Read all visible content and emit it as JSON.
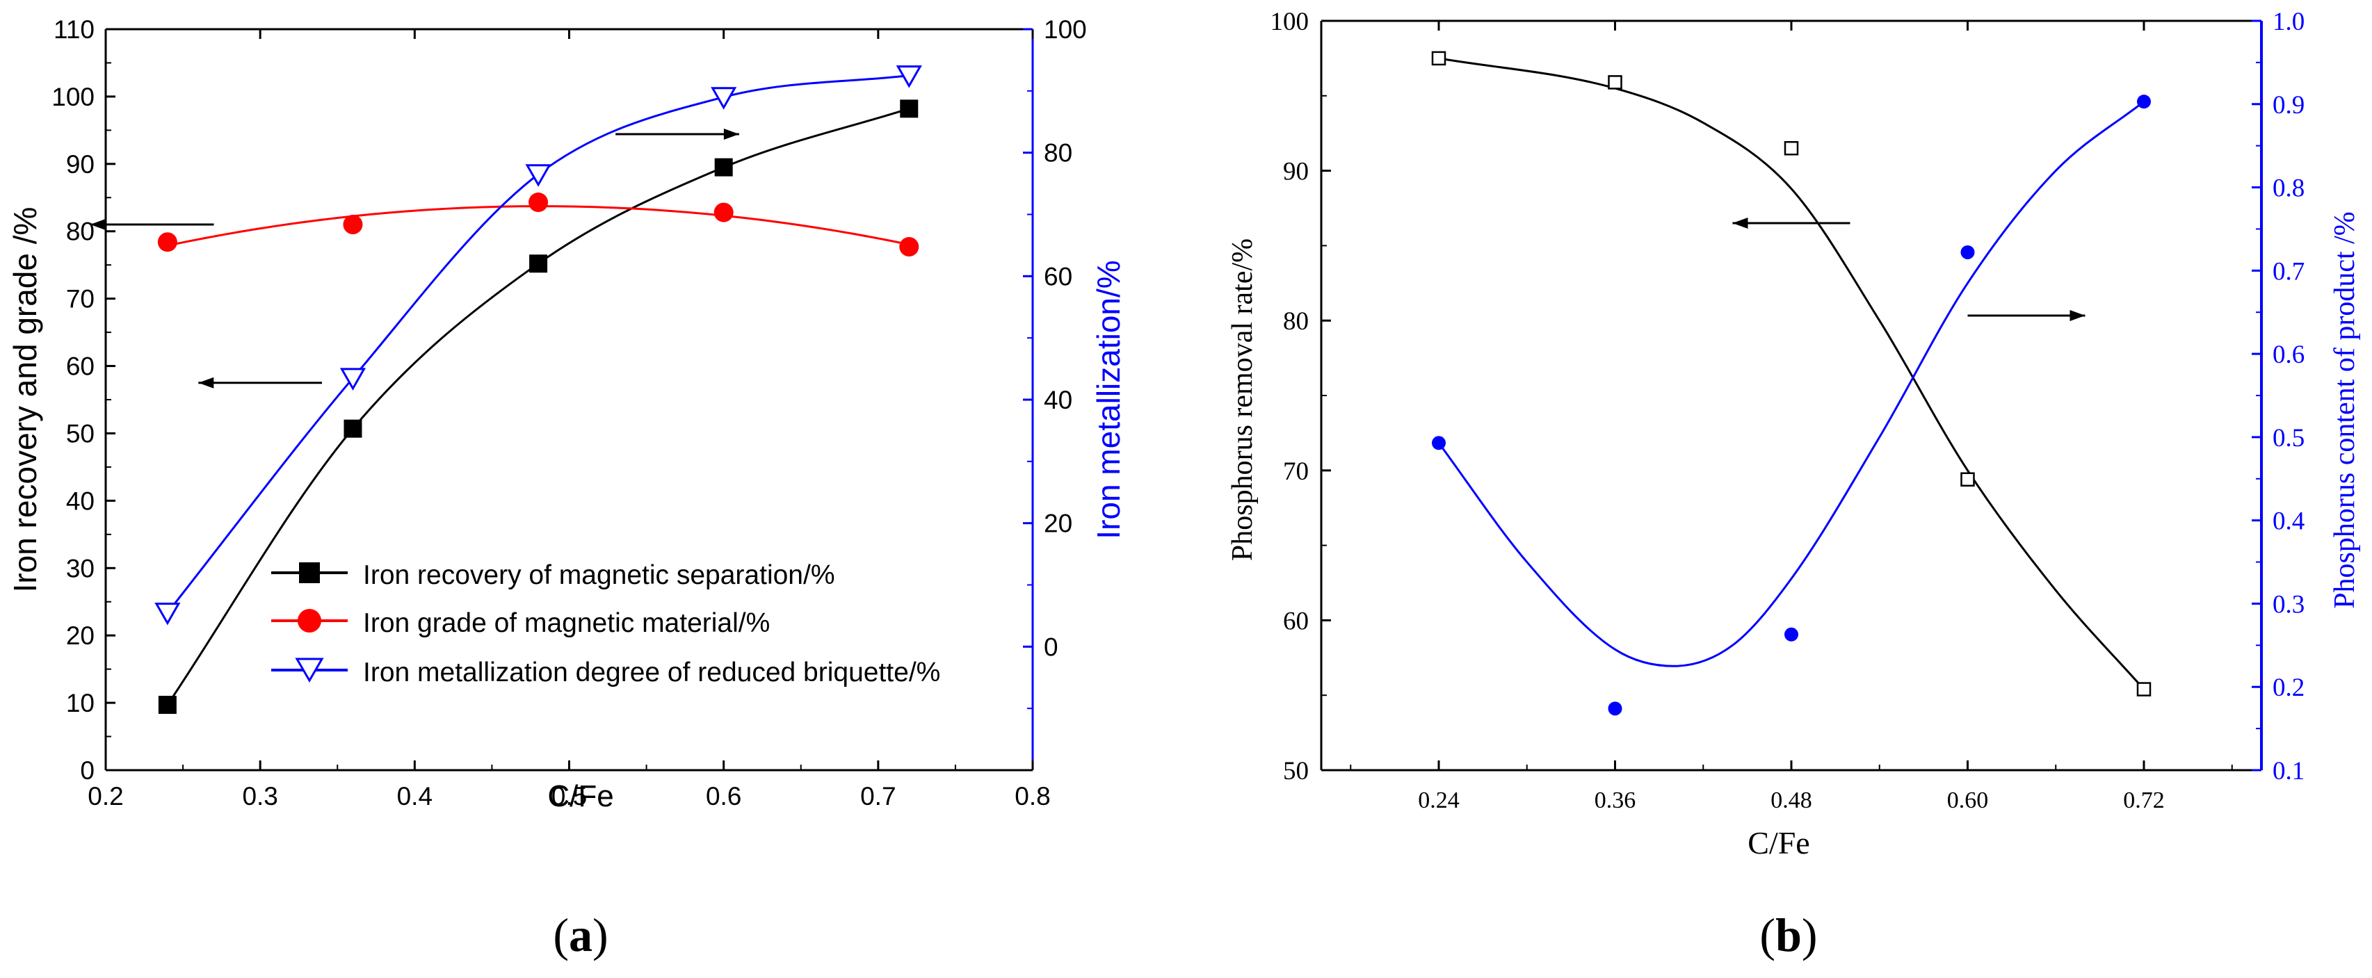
{
  "chart_data": [
    {
      "panel": "a",
      "panel_label": "a",
      "type": "line",
      "xlabel": "C/Fe",
      "ylabel_left": "Iron recovery and grade /%",
      "ylabel_right": "Iron metallization/%",
      "xlim": [
        0.2,
        0.8
      ],
      "ylim_left": [
        0,
        110
      ],
      "ylim_right": [
        -20,
        100
      ],
      "x_ticks": [
        0.2,
        0.3,
        0.4,
        0.5,
        0.6,
        0.7,
        0.8
      ],
      "y_left_ticks": [
        0,
        10,
        20,
        30,
        40,
        50,
        60,
        70,
        80,
        90,
        100,
        110
      ],
      "y_right_ticks": [
        0,
        20,
        40,
        60,
        80,
        100
      ],
      "x_tick_labels": [
        "0.2",
        "0.3",
        "0.4",
        "0.5",
        "0.6",
        "0.7",
        "0.8"
      ],
      "y_left_tick_labels": [
        "0",
        "10",
        "20",
        "30",
        "40",
        "50",
        "60",
        "70",
        "80",
        "90",
        "100",
        "110"
      ],
      "y_right_tick_labels": [
        "0",
        "20",
        "40",
        "60",
        "80",
        "100"
      ],
      "legend_position": "bottom-center",
      "axis_colors": {
        "left": "#000000",
        "right": "#0000ff"
      },
      "series": [
        {
          "name": "Iron recovery of magnetic separation/%",
          "axis": "left",
          "color": "#000000",
          "marker": "filled-square",
          "x": [
            0.24,
            0.36,
            0.48,
            0.6,
            0.72
          ],
          "y": [
            9.7,
            50.7,
            75.2,
            89.5,
            98.2
          ]
        },
        {
          "name": "Iron grade of magnetic material/%",
          "axis": "left",
          "color": "#ff0000",
          "marker": "filled-circle",
          "x": [
            0.24,
            0.36,
            0.48,
            0.6,
            0.72
          ],
          "y": [
            78.4,
            81.0,
            84.3,
            82.8,
            77.7
          ]
        },
        {
          "name": "Iron metallization degree of reduced briquette/%",
          "axis": "right",
          "color": "#0000ff",
          "marker": "hollow-triangle-down",
          "x": [
            0.24,
            0.36,
            0.48,
            0.6,
            0.72
          ],
          "y": [
            5.5,
            43.5,
            76.5,
            89.0,
            92.5
          ]
        }
      ],
      "arrows": [
        {
          "direction": "left",
          "from": [
            0.27,
            81.0
          ],
          "to": [
            0.19,
            81.0
          ],
          "axis": "left"
        },
        {
          "direction": "left",
          "from": [
            0.34,
            57.5
          ],
          "to": [
            0.26,
            57.5
          ],
          "axis": "left"
        },
        {
          "direction": "right",
          "from": [
            0.53,
            83.0
          ],
          "to": [
            0.61,
            83.0
          ],
          "axis": "right"
        }
      ]
    },
    {
      "panel": "b",
      "panel_label": "b",
      "type": "line",
      "xlabel": "C/Fe",
      "ylabel_left": "Phosphorus removal rate/%",
      "ylabel_right": "Phosphorus content of product /%",
      "xlim": [
        0.16,
        0.8
      ],
      "ylim_left": [
        50,
        100
      ],
      "ylim_right": [
        0.1,
        1.0
      ],
      "x_ticks": [
        0.24,
        0.36,
        0.48,
        0.6,
        0.72
      ],
      "x_tick_labels": [
        "0.24",
        "0.36",
        "0.48",
        "0.60",
        "0.72"
      ],
      "y_left_ticks": [
        50,
        60,
        70,
        80,
        90,
        100
      ],
      "y_left_tick_labels": [
        "50",
        "60",
        "70",
        "80",
        "90",
        "100"
      ],
      "y_right_ticks": [
        0.1,
        0.2,
        0.3,
        0.4,
        0.5,
        0.6,
        0.7,
        0.8,
        0.9,
        1.0
      ],
      "y_right_tick_labels": [
        "0.1",
        "0.2",
        "0.3",
        "0.4",
        "0.5",
        "0.6",
        "0.7",
        "0.8",
        "0.9",
        "1.0"
      ],
      "axis_colors": {
        "left": "#000000",
        "right": "#0000ff"
      },
      "series": [
        {
          "name": "Phosphorus removal rate",
          "axis": "left",
          "color": "#000000",
          "marker": "hollow-square",
          "x": [
            0.24,
            0.36,
            0.48,
            0.6,
            0.72
          ],
          "y": [
            97.5,
            95.9,
            91.5,
            69.4,
            55.4
          ]
        },
        {
          "name": "Phosphorus content of product",
          "axis": "right",
          "color": "#0000ff",
          "marker": "filled-circle",
          "x": [
            0.24,
            0.36,
            0.48,
            0.6,
            0.72
          ],
          "y": [
            0.493,
            0.174,
            0.263,
            0.722,
            0.903
          ]
        }
      ],
      "curve_fits": [
        {
          "axis": "left",
          "x": [
            0.24,
            0.36,
            0.42,
            0.48,
            0.54,
            0.6,
            0.66,
            0.72
          ],
          "y": [
            97.5,
            95.5,
            93.2,
            88.8,
            80.0,
            70.0,
            62.0,
            55.4
          ]
        },
        {
          "axis": "right",
          "x": [
            0.24,
            0.3,
            0.36,
            0.4,
            0.44,
            0.48,
            0.54,
            0.6,
            0.66,
            0.72
          ],
          "y": [
            0.493,
            0.35,
            0.245,
            0.225,
            0.25,
            0.33,
            0.5,
            0.685,
            0.82,
            0.903
          ]
        }
      ],
      "arrows": [
        {
          "direction": "left",
          "from": [
            0.52,
            86.5
          ],
          "to": [
            0.44,
            86.5
          ],
          "axis": "left"
        },
        {
          "direction": "right",
          "from": [
            0.6,
            0.646
          ],
          "to": [
            0.68,
            0.646
          ],
          "axis": "right"
        }
      ]
    }
  ]
}
